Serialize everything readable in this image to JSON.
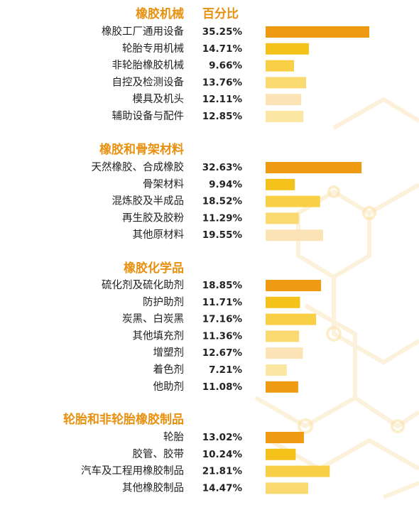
{
  "column_header": "百分比",
  "colors": {
    "accent": "#e8900f",
    "bar_shades": [
      "#ee9a12",
      "#f5c21c",
      "#f8cf45",
      "#f9d970",
      "#fbe3b5",
      "#fbe7a3"
    ]
  },
  "chart_data": [
    {
      "type": "bar",
      "title": "橡胶机械",
      "categories": [
        "橡胶工厂通用设备",
        "轮胎专用机械",
        "非轮胎橡胶机械",
        "自控及检测设备",
        "模具及机头",
        "辅助设备与配件"
      ],
      "values": [
        35.25,
        14.71,
        9.66,
        13.76,
        12.11,
        12.85
      ],
      "labels": [
        "35.25%",
        "14.71%",
        "9.66%",
        "13.76%",
        "12.11%",
        "12.85%"
      ],
      "unit": "%"
    },
    {
      "type": "bar",
      "title": "橡胶和骨架材料",
      "categories": [
        "天然橡胶、合成橡胶",
        "骨架材料",
        "混炼胶及半成品",
        "再生胶及胶粉",
        "其他原材料"
      ],
      "values": [
        32.63,
        9.94,
        18.52,
        11.29,
        19.55
      ],
      "labels": [
        "32.63%",
        "9.94%",
        "18.52%",
        "11.29%",
        "19.55%"
      ],
      "unit": "%"
    },
    {
      "type": "bar",
      "title": "橡胶化学品",
      "categories": [
        "硫化剂及硫化助剂",
        "防护助剂",
        "炭黑、白炭黑",
        "其他填充剂",
        "增塑剂",
        "着色剂",
        "他助剂"
      ],
      "values": [
        18.85,
        11.71,
        17.16,
        11.36,
        12.67,
        7.21,
        11.08
      ],
      "labels": [
        "18.85%",
        "11.71%",
        "17.16%",
        "11.36%",
        "12.67%",
        "7.21%",
        "11.08%"
      ],
      "unit": "%"
    },
    {
      "type": "bar",
      "title": "轮胎和非轮胎橡胶制品",
      "categories": [
        "轮胎",
        "胶管、胶带",
        "汽车及工程用橡胶制品",
        "其他橡胶制品"
      ],
      "values": [
        13.02,
        10.24,
        21.81,
        14.47
      ],
      "labels": [
        "13.02%",
        "10.24%",
        "21.81%",
        "14.47%"
      ],
      "unit": "%"
    }
  ]
}
